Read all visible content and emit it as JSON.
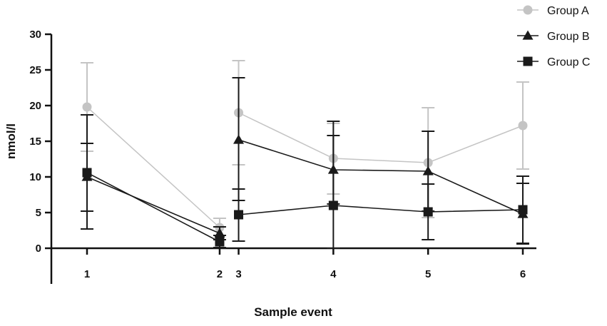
{
  "chart_data": {
    "type": "line",
    "title": "",
    "xlabel": "Sample event",
    "ylabel": "nmol/l",
    "ylim": [
      0,
      30
    ],
    "yticks": [
      0,
      5,
      10,
      15,
      20,
      25,
      30
    ],
    "x_ticks": [
      {
        "label": "1",
        "value": 1
      },
      {
        "label": "2",
        "value": 2.4
      },
      {
        "label": "3",
        "value": 2.6
      },
      {
        "label": "4",
        "value": 3.6
      },
      {
        "label": "5",
        "value": 4.6
      },
      {
        "label": "6",
        "value": 5.6
      }
    ],
    "xlim": [
      0.5,
      5.8
    ],
    "grid": false,
    "legend_position": "top-right",
    "series": [
      {
        "name": "Group A",
        "color": "#c4c4c4",
        "marker": "circle",
        "segments": [
          [
            {
              "x": 1,
              "y": 19.8,
              "err_hi": 26.0,
              "err_lo": 13.6
            },
            {
              "x": 2.4,
              "y": 2.9,
              "err_hi": 4.2,
              "err_lo": 1.8
            }
          ],
          [
            {
              "x": 2.6,
              "y": 19.0,
              "err_hi": 26.3,
              "err_lo": 11.7
            },
            {
              "x": 3.6,
              "y": 12.6,
              "err_hi": 17.5,
              "err_lo": 7.6
            },
            {
              "x": 4.6,
              "y": 12.0,
              "err_hi": 19.7,
              "err_lo": 4.3
            },
            {
              "x": 5.6,
              "y": 17.2,
              "err_hi": 23.3,
              "err_lo": 11.1
            }
          ]
        ]
      },
      {
        "name": "Group B",
        "color": "#1a1a1a",
        "marker": "triangle",
        "segments": [
          [
            {
              "x": 1,
              "y": 10.0,
              "err_hi": 14.7,
              "err_lo": 5.2
            },
            {
              "x": 2.4,
              "y": 2.1,
              "err_hi": 3.0,
              "err_lo": 1.2
            }
          ],
          [
            {
              "x": 2.6,
              "y": 15.2,
              "err_hi": 23.9,
              "err_lo": 6.7
            },
            {
              "x": 3.6,
              "y": 11.0,
              "err_hi": 15.8,
              "err_lo": 6.2
            },
            {
              "x": 4.6,
              "y": 10.8,
              "err_hi": 16.4,
              "err_lo": 5.2
            },
            {
              "x": 5.6,
              "y": 4.8,
              "err_hi": 9.1,
              "err_lo": 0.6
            }
          ]
        ]
      },
      {
        "name": "Group C",
        "color": "#1a1a1a",
        "marker": "square",
        "segments": [
          [
            {
              "x": 1,
              "y": 10.6,
              "err_hi": 18.7,
              "err_lo": 2.7
            },
            {
              "x": 2.4,
              "y": 0.9,
              "err_hi": 1.8,
              "err_lo": 0.1
            }
          ],
          [
            {
              "x": 2.6,
              "y": 4.7,
              "err_hi": 8.3,
              "err_lo": 1.0
            },
            {
              "x": 3.6,
              "y": 6.0,
              "err_hi": 17.8,
              "err_lo": 0.0
            },
            {
              "x": 4.6,
              "y": 5.1,
              "err_hi": 9.0,
              "err_lo": 1.2
            },
            {
              "x": 5.6,
              "y": 5.4,
              "err_hi": 10.1,
              "err_lo": 0.7
            }
          ]
        ]
      }
    ]
  }
}
